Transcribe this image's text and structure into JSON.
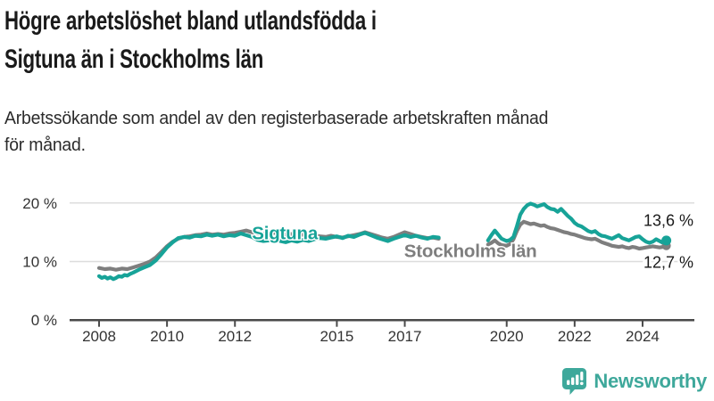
{
  "title": {
    "lines": [
      "Högre arbetslöshet bland utlandsfödda i",
      "Sigtuna än i Stockholms län"
    ]
  },
  "subtitle": {
    "lines": [
      "Arbetssökande som andel av den registerbaserade arbetskraften månad",
      "för månad."
    ]
  },
  "colors": {
    "accent_teal": "#17a398",
    "series_gray": "#7e7e7e",
    "gridline": "#dddddd",
    "axis": "#4a4a4a",
    "tick_label": "#333333",
    "end_label": "#1a1a1a",
    "title_text": "#1a1a1a",
    "logo_teal": "#3ea89b"
  },
  "chart_data": {
    "type": "line",
    "unit": "%",
    "grid": true,
    "y_axis": {
      "ticks": [
        0,
        10,
        20
      ],
      "tick_labels": [
        "0 %",
        "10 %",
        "20 %"
      ],
      "range": [
        0,
        22
      ]
    },
    "x_axis": {
      "tick_years": [
        2008,
        2010,
        2012,
        2015,
        2017,
        2020,
        2022,
        2024
      ],
      "range": [
        2007.1,
        2025.5
      ]
    },
    "note": "data gap between 2018.0 and 2019.45 in both series",
    "series": [
      {
        "name": "Stockholms län",
        "color": "#7e7e7e",
        "end_label": "12,7 %",
        "end_value": 12.7,
        "end_year": 2024.7,
        "label_x_year": 2016.98,
        "label_y_value": 11.85,
        "segments": [
          [
            [
              2008.0,
              8.9
            ],
            [
              2008.17,
              8.7
            ],
            [
              2008.33,
              8.8
            ],
            [
              2008.5,
              8.6
            ],
            [
              2008.67,
              8.8
            ],
            [
              2008.83,
              8.7
            ],
            [
              2009.0,
              9.0
            ],
            [
              2009.17,
              9.3
            ],
            [
              2009.33,
              9.6
            ],
            [
              2009.5,
              10.0
            ],
            [
              2009.67,
              10.7
            ],
            [
              2009.83,
              11.6
            ],
            [
              2010.0,
              12.6
            ],
            [
              2010.17,
              13.4
            ],
            [
              2010.33,
              13.9
            ],
            [
              2010.5,
              14.2
            ],
            [
              2010.67,
              14.3
            ],
            [
              2010.83,
              14.5
            ],
            [
              2011.0,
              14.6
            ],
            [
              2011.17,
              14.8
            ],
            [
              2011.33,
              14.6
            ],
            [
              2011.5,
              14.7
            ],
            [
              2011.67,
              14.6
            ],
            [
              2011.83,
              14.8
            ],
            [
              2012.0,
              14.9
            ],
            [
              2012.17,
              15.1
            ],
            [
              2012.33,
              15.3
            ],
            [
              2012.5,
              15.0
            ],
            [
              2012.67,
              14.8
            ],
            [
              2012.83,
              14.7
            ],
            [
              2013.0,
              14.8
            ],
            [
              2013.17,
              14.9
            ],
            [
              2013.33,
              14.7
            ],
            [
              2013.5,
              14.6
            ],
            [
              2013.67,
              14.7
            ],
            [
              2013.83,
              14.5
            ],
            [
              2014.0,
              14.6
            ],
            [
              2014.17,
              14.4
            ],
            [
              2014.33,
              14.5
            ],
            [
              2014.5,
              14.3
            ],
            [
              2014.67,
              14.2
            ],
            [
              2014.83,
              14.4
            ],
            [
              2015.0,
              14.2
            ],
            [
              2015.17,
              14.1
            ],
            [
              2015.33,
              14.3
            ],
            [
              2015.5,
              14.5
            ],
            [
              2015.67,
              14.7
            ],
            [
              2015.83,
              15.0
            ],
            [
              2016.0,
              14.7
            ],
            [
              2016.17,
              14.4
            ],
            [
              2016.33,
              14.1
            ],
            [
              2016.5,
              13.9
            ],
            [
              2016.67,
              14.2
            ],
            [
              2016.83,
              14.6
            ],
            [
              2017.0,
              15.0
            ],
            [
              2017.17,
              14.7
            ],
            [
              2017.33,
              14.4
            ],
            [
              2017.5,
              14.2
            ],
            [
              2017.67,
              14.0
            ],
            [
              2017.83,
              14.1
            ],
            [
              2018.0,
              13.9
            ]
          ],
          [
            [
              2019.45,
              12.9
            ],
            [
              2019.55,
              13.2
            ],
            [
              2019.65,
              13.6
            ],
            [
              2019.75,
              13.1
            ],
            [
              2019.85,
              12.8
            ],
            [
              2020.0,
              12.7
            ],
            [
              2020.1,
              13.0
            ],
            [
              2020.2,
              13.8
            ],
            [
              2020.3,
              15.2
            ],
            [
              2020.4,
              16.3
            ],
            [
              2020.5,
              16.8
            ],
            [
              2020.6,
              16.6
            ],
            [
              2020.7,
              16.4
            ],
            [
              2020.8,
              16.5
            ],
            [
              2020.9,
              16.3
            ],
            [
              2021.0,
              16.1
            ],
            [
              2021.1,
              16.2
            ],
            [
              2021.2,
              15.9
            ],
            [
              2021.3,
              15.7
            ],
            [
              2021.4,
              15.6
            ],
            [
              2021.5,
              15.4
            ],
            [
              2021.6,
              15.2
            ],
            [
              2021.7,
              15.0
            ],
            [
              2021.8,
              14.9
            ],
            [
              2021.9,
              14.7
            ],
            [
              2022.0,
              14.6
            ],
            [
              2022.1,
              14.4
            ],
            [
              2022.2,
              14.2
            ],
            [
              2022.3,
              14.0
            ],
            [
              2022.4,
              13.9
            ],
            [
              2022.5,
              13.8
            ],
            [
              2022.6,
              13.9
            ],
            [
              2022.7,
              13.6
            ],
            [
              2022.8,
              13.3
            ],
            [
              2022.9,
              13.1
            ],
            [
              2023.0,
              12.9
            ],
            [
              2023.1,
              12.7
            ],
            [
              2023.2,
              12.6
            ],
            [
              2023.3,
              12.5
            ],
            [
              2023.4,
              12.6
            ],
            [
              2023.5,
              12.4
            ],
            [
              2023.6,
              12.3
            ],
            [
              2023.7,
              12.5
            ],
            [
              2023.8,
              12.4
            ],
            [
              2023.9,
              12.2
            ],
            [
              2024.0,
              12.3
            ],
            [
              2024.1,
              12.4
            ],
            [
              2024.2,
              12.5
            ],
            [
              2024.3,
              12.6
            ],
            [
              2024.4,
              12.5
            ],
            [
              2024.5,
              12.4
            ],
            [
              2024.6,
              12.5
            ],
            [
              2024.7,
              12.7
            ]
          ]
        ]
      },
      {
        "name": "Sigtuna",
        "color": "#17a398",
        "end_label": "13,6 %",
        "end_value": 13.6,
        "end_year": 2024.7,
        "label_x_year": 2012.5,
        "label_y_value": 14.85,
        "segments": [
          [
            [
              2008.0,
              7.5
            ],
            [
              2008.08,
              7.2
            ],
            [
              2008.17,
              7.4
            ],
            [
              2008.25,
              7.1
            ],
            [
              2008.33,
              7.3
            ],
            [
              2008.42,
              7.0
            ],
            [
              2008.5,
              7.2
            ],
            [
              2008.58,
              7.5
            ],
            [
              2008.67,
              7.4
            ],
            [
              2008.75,
              7.7
            ],
            [
              2008.83,
              7.6
            ],
            [
              2008.92,
              7.9
            ],
            [
              2009.0,
              8.1
            ],
            [
              2009.17,
              8.6
            ],
            [
              2009.33,
              9.0
            ],
            [
              2009.5,
              9.4
            ],
            [
              2009.67,
              10.2
            ],
            [
              2009.83,
              11.2
            ],
            [
              2010.0,
              12.4
            ],
            [
              2010.17,
              13.3
            ],
            [
              2010.33,
              14.0
            ],
            [
              2010.5,
              14.2
            ],
            [
              2010.67,
              14.1
            ],
            [
              2010.83,
              14.4
            ],
            [
              2011.0,
              14.3
            ],
            [
              2011.17,
              14.6
            ],
            [
              2011.33,
              14.4
            ],
            [
              2011.5,
              14.6
            ],
            [
              2011.67,
              14.3
            ],
            [
              2011.83,
              14.5
            ],
            [
              2012.0,
              14.4
            ],
            [
              2012.17,
              14.8
            ],
            [
              2012.33,
              14.5
            ],
            [
              2012.5,
              14.2
            ],
            [
              2012.67,
              13.7
            ],
            [
              2012.83,
              13.5
            ],
            [
              2013.0,
              13.6
            ],
            [
              2013.17,
              13.9
            ],
            [
              2013.33,
              13.5
            ],
            [
              2013.5,
              13.3
            ],
            [
              2013.67,
              13.6
            ],
            [
              2013.83,
              13.4
            ],
            [
              2014.0,
              13.7
            ],
            [
              2014.17,
              13.5
            ],
            [
              2014.33,
              13.8
            ],
            [
              2014.5,
              14.0
            ],
            [
              2014.67,
              13.9
            ],
            [
              2014.83,
              14.1
            ],
            [
              2015.0,
              14.3
            ],
            [
              2015.17,
              14.0
            ],
            [
              2015.33,
              14.4
            ],
            [
              2015.5,
              14.2
            ],
            [
              2015.67,
              14.6
            ],
            [
              2015.83,
              14.9
            ],
            [
              2016.0,
              14.5
            ],
            [
              2016.17,
              14.1
            ],
            [
              2016.33,
              13.8
            ],
            [
              2016.5,
              13.5
            ],
            [
              2016.67,
              13.9
            ],
            [
              2016.83,
              14.2
            ],
            [
              2017.0,
              14.5
            ],
            [
              2017.17,
              14.2
            ],
            [
              2017.33,
              14.4
            ],
            [
              2017.5,
              14.1
            ],
            [
              2017.67,
              13.9
            ],
            [
              2017.83,
              14.2
            ],
            [
              2018.0,
              14.1
            ]
          ],
          [
            [
              2019.45,
              13.6
            ],
            [
              2019.55,
              14.5
            ],
            [
              2019.65,
              15.3
            ],
            [
              2019.75,
              14.6
            ],
            [
              2019.85,
              13.9
            ],
            [
              2020.0,
              13.5
            ],
            [
              2020.1,
              13.7
            ],
            [
              2020.2,
              14.2
            ],
            [
              2020.3,
              16.0
            ],
            [
              2020.4,
              18.0
            ],
            [
              2020.5,
              19.0
            ],
            [
              2020.6,
              19.6
            ],
            [
              2020.7,
              19.9
            ],
            [
              2020.8,
              19.7
            ],
            [
              2020.9,
              19.4
            ],
            [
              2021.0,
              19.6
            ],
            [
              2021.1,
              19.8
            ],
            [
              2021.2,
              19.3
            ],
            [
              2021.3,
              19.0
            ],
            [
              2021.4,
              18.9
            ],
            [
              2021.5,
              18.5
            ],
            [
              2021.6,
              19.0
            ],
            [
              2021.7,
              18.4
            ],
            [
              2021.8,
              17.8
            ],
            [
              2021.9,
              17.3
            ],
            [
              2022.0,
              16.6
            ],
            [
              2022.1,
              16.2
            ],
            [
              2022.2,
              16.0
            ],
            [
              2022.3,
              15.6
            ],
            [
              2022.4,
              15.2
            ],
            [
              2022.5,
              15.0
            ],
            [
              2022.6,
              15.2
            ],
            [
              2022.7,
              14.7
            ],
            [
              2022.8,
              14.4
            ],
            [
              2022.9,
              14.3
            ],
            [
              2023.0,
              14.1
            ],
            [
              2023.1,
              13.9
            ],
            [
              2023.2,
              14.2
            ],
            [
              2023.3,
              14.5
            ],
            [
              2023.4,
              14.0
            ],
            [
              2023.5,
              13.8
            ],
            [
              2023.6,
              13.6
            ],
            [
              2023.7,
              13.9
            ],
            [
              2023.8,
              14.2
            ],
            [
              2023.9,
              14.3
            ],
            [
              2024.0,
              13.8
            ],
            [
              2024.1,
              13.4
            ],
            [
              2024.2,
              13.2
            ],
            [
              2024.3,
              13.4
            ],
            [
              2024.4,
              13.8
            ],
            [
              2024.5,
              13.5
            ],
            [
              2024.6,
              13.2
            ],
            [
              2024.7,
              13.6
            ]
          ]
        ]
      }
    ]
  },
  "logo": {
    "text": "Newsworthy",
    "icon": "newsworthy-chart-bubble-icon"
  }
}
